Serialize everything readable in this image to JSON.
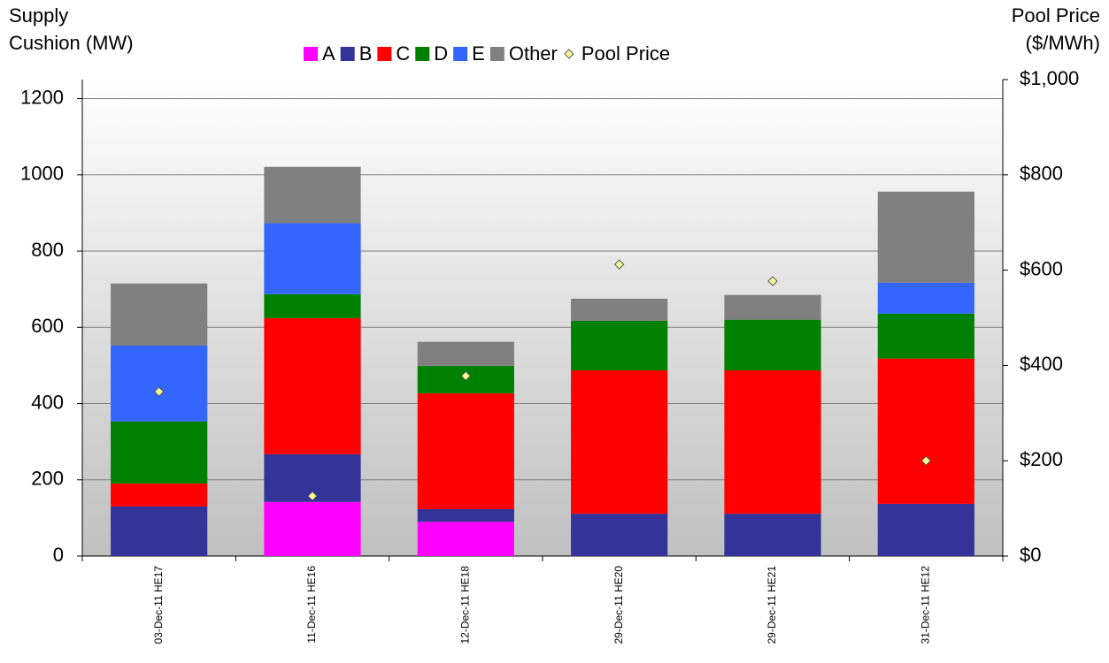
{
  "chart_data": {
    "type": "bar",
    "stacked": true,
    "y_label": [
      "Supply",
      "Cushion (MW)"
    ],
    "y2_label": [
      "Pool Price",
      "($/MWh)"
    ],
    "categories": [
      "03-Dec-11 HE17",
      "11-Dec-11 HE16",
      "12-Dec-11 HE18",
      "29-Dec-11 HE20",
      "29-Dec-11 HE21",
      "31-Dec-11 HE12"
    ],
    "series": [
      {
        "name": "A",
        "type": "bar",
        "color": "#ff00ff",
        "values": [
          0,
          142,
          90,
          0,
          0,
          0
        ]
      },
      {
        "name": "B",
        "type": "bar",
        "color": "#333399",
        "values": [
          130,
          125,
          33,
          111,
          111,
          137
        ]
      },
      {
        "name": "C",
        "type": "bar",
        "color": "#ff0000",
        "values": [
          60,
          357,
          304,
          376,
          376,
          381
        ]
      },
      {
        "name": "D",
        "type": "bar",
        "color": "#008000",
        "values": [
          163,
          63,
          72,
          130,
          133,
          118
        ]
      },
      {
        "name": "E",
        "type": "bar",
        "color": "#3366ff",
        "values": [
          199,
          186,
          0,
          0,
          0,
          81
        ]
      },
      {
        "name": "Other",
        "type": "bar",
        "color": "#808080",
        "values": [
          163,
          148,
          63,
          58,
          65,
          239
        ]
      },
      {
        "name": "Pool Price",
        "type": "scatter",
        "axis": "y2",
        "color": "#ffff99",
        "values": [
          345,
          126,
          378,
          612,
          577,
          200
        ]
      }
    ],
    "ylim": [
      0,
      1250
    ],
    "yticks": [
      0,
      200,
      400,
      600,
      800,
      1000,
      1200
    ],
    "y2lim": [
      0,
      1000
    ],
    "y2ticks": [
      {
        "value": 0,
        "label": "$0"
      },
      {
        "value": 200,
        "label": "$200"
      },
      {
        "value": 400,
        "label": "$400"
      },
      {
        "value": 600,
        "label": "$600"
      },
      {
        "value": 800,
        "label": "$800"
      },
      {
        "value": 1000,
        "label": "$1,000"
      }
    ],
    "grid": true
  }
}
